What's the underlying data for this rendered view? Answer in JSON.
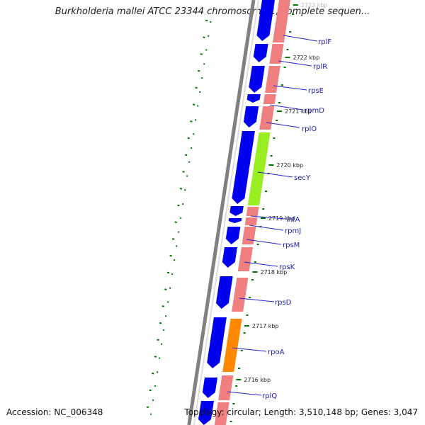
{
  "title": "Burkholderia mallei ATCC 23344 chromosome 1, complete sequen...",
  "accession": "Accession: NC_006348",
  "topology": "Topology: circular; Length: 3,510,148 bp; Genes: 3,047",
  "colors": {
    "cds_blue": "#0000ee",
    "rna_pink": "#f08080",
    "secY_green": "#99ee22",
    "rpoA_orange": "#ff8800",
    "ruler_gray": "#808080",
    "gc_green": "#007700",
    "label_blue": "#1a1ab5",
    "label_line": "#2222cc"
  },
  "kbp_marks": [
    {
      "label": "2723 kbp",
      "faded": true
    },
    {
      "label": "2722 kbp",
      "faded": false
    },
    {
      "label": "2721 kbp",
      "faded": false
    },
    {
      "label": "2720 kbp",
      "faded": false
    },
    {
      "label": "2719 kbp",
      "faded": false
    },
    {
      "label": "2718 kbp",
      "faded": false
    },
    {
      "label": "2717 kbp",
      "faded": false
    },
    {
      "label": "2716 kbp",
      "faded": false
    }
  ],
  "gene_labels": [
    "rplF",
    "rplR",
    "rpsE",
    "rpmD",
    "rplO",
    "secY",
    "infA",
    "rpmJ",
    "rpsM",
    "rpsK",
    "rpsD",
    "rpoA",
    "rplQ"
  ]
}
